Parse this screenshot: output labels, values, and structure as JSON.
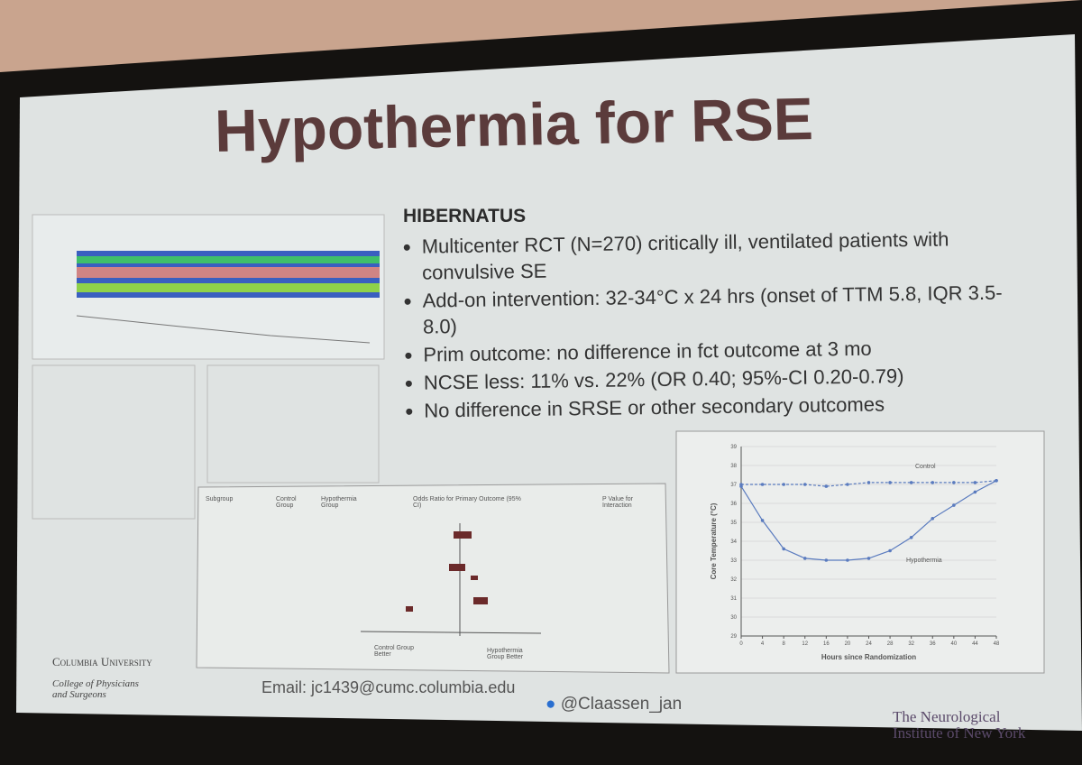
{
  "slide": {
    "title": "Hypothermia for RSE",
    "heading": "HIBERNATUS",
    "bullets": [
      "Multicenter RCT (N=270) critically ill, ventilated patients with convulsive SE",
      "Add-on intervention: 32-34°C x 24 hrs (onset of TTM 5.8, IQR 3.5-8.0)",
      "Prim outcome: no difference in fct outcome at 3 mo",
      "NCSE less: 11% vs. 22% (OR 0.40; 95%-CI 0.20-0.79)",
      "No difference in SRSE or other secondary outcomes"
    ],
    "forest_plot": {
      "headers": [
        "Subgroup",
        "Control Group",
        "Hypothermia Group",
        "Odds Ratio for Primary Outcome (95% CI)",
        "P Value for Interaction"
      ],
      "footer": [
        "Control Group Better",
        "Hypothermia Group Better"
      ]
    },
    "temperature_chart": {
      "type": "line",
      "y_label": "Core Temperature (°C)",
      "x_label": "Hours since Randomization",
      "x": [
        0,
        4,
        8,
        12,
        16,
        20,
        24,
        28,
        32,
        36,
        40,
        44,
        48
      ],
      "xlim": [
        0,
        48
      ],
      "xticks": [
        0,
        4,
        8,
        12,
        16,
        20,
        24,
        28,
        32,
        36,
        40,
        44,
        48
      ],
      "ylim": [
        29,
        39
      ],
      "yticks": [
        29,
        30,
        31,
        32,
        33,
        34,
        35,
        36,
        37,
        38,
        39
      ],
      "series": [
        {
          "name": "Control",
          "color": "#5a7bbf",
          "values": [
            37,
            37,
            37,
            37,
            36.9,
            37,
            37.1,
            37.1,
            37.1,
            37.1,
            37.1,
            37.1,
            37.2
          ]
        },
        {
          "name": "Hypothermia",
          "color": "#5a7bbf",
          "values": [
            36.9,
            35.1,
            33.6,
            33.1,
            33,
            33,
            33.1,
            33.5,
            34.2,
            35.2,
            35.9,
            36.6,
            37.2
          ]
        }
      ]
    },
    "footer": {
      "email": "Email: jc1439@cumc.columbia.edu",
      "twitter": "@Claassen_jan",
      "university": "Columbia University",
      "college": "College of Physicians and Surgeons",
      "institute": "The Neurological Institute of New York"
    }
  }
}
